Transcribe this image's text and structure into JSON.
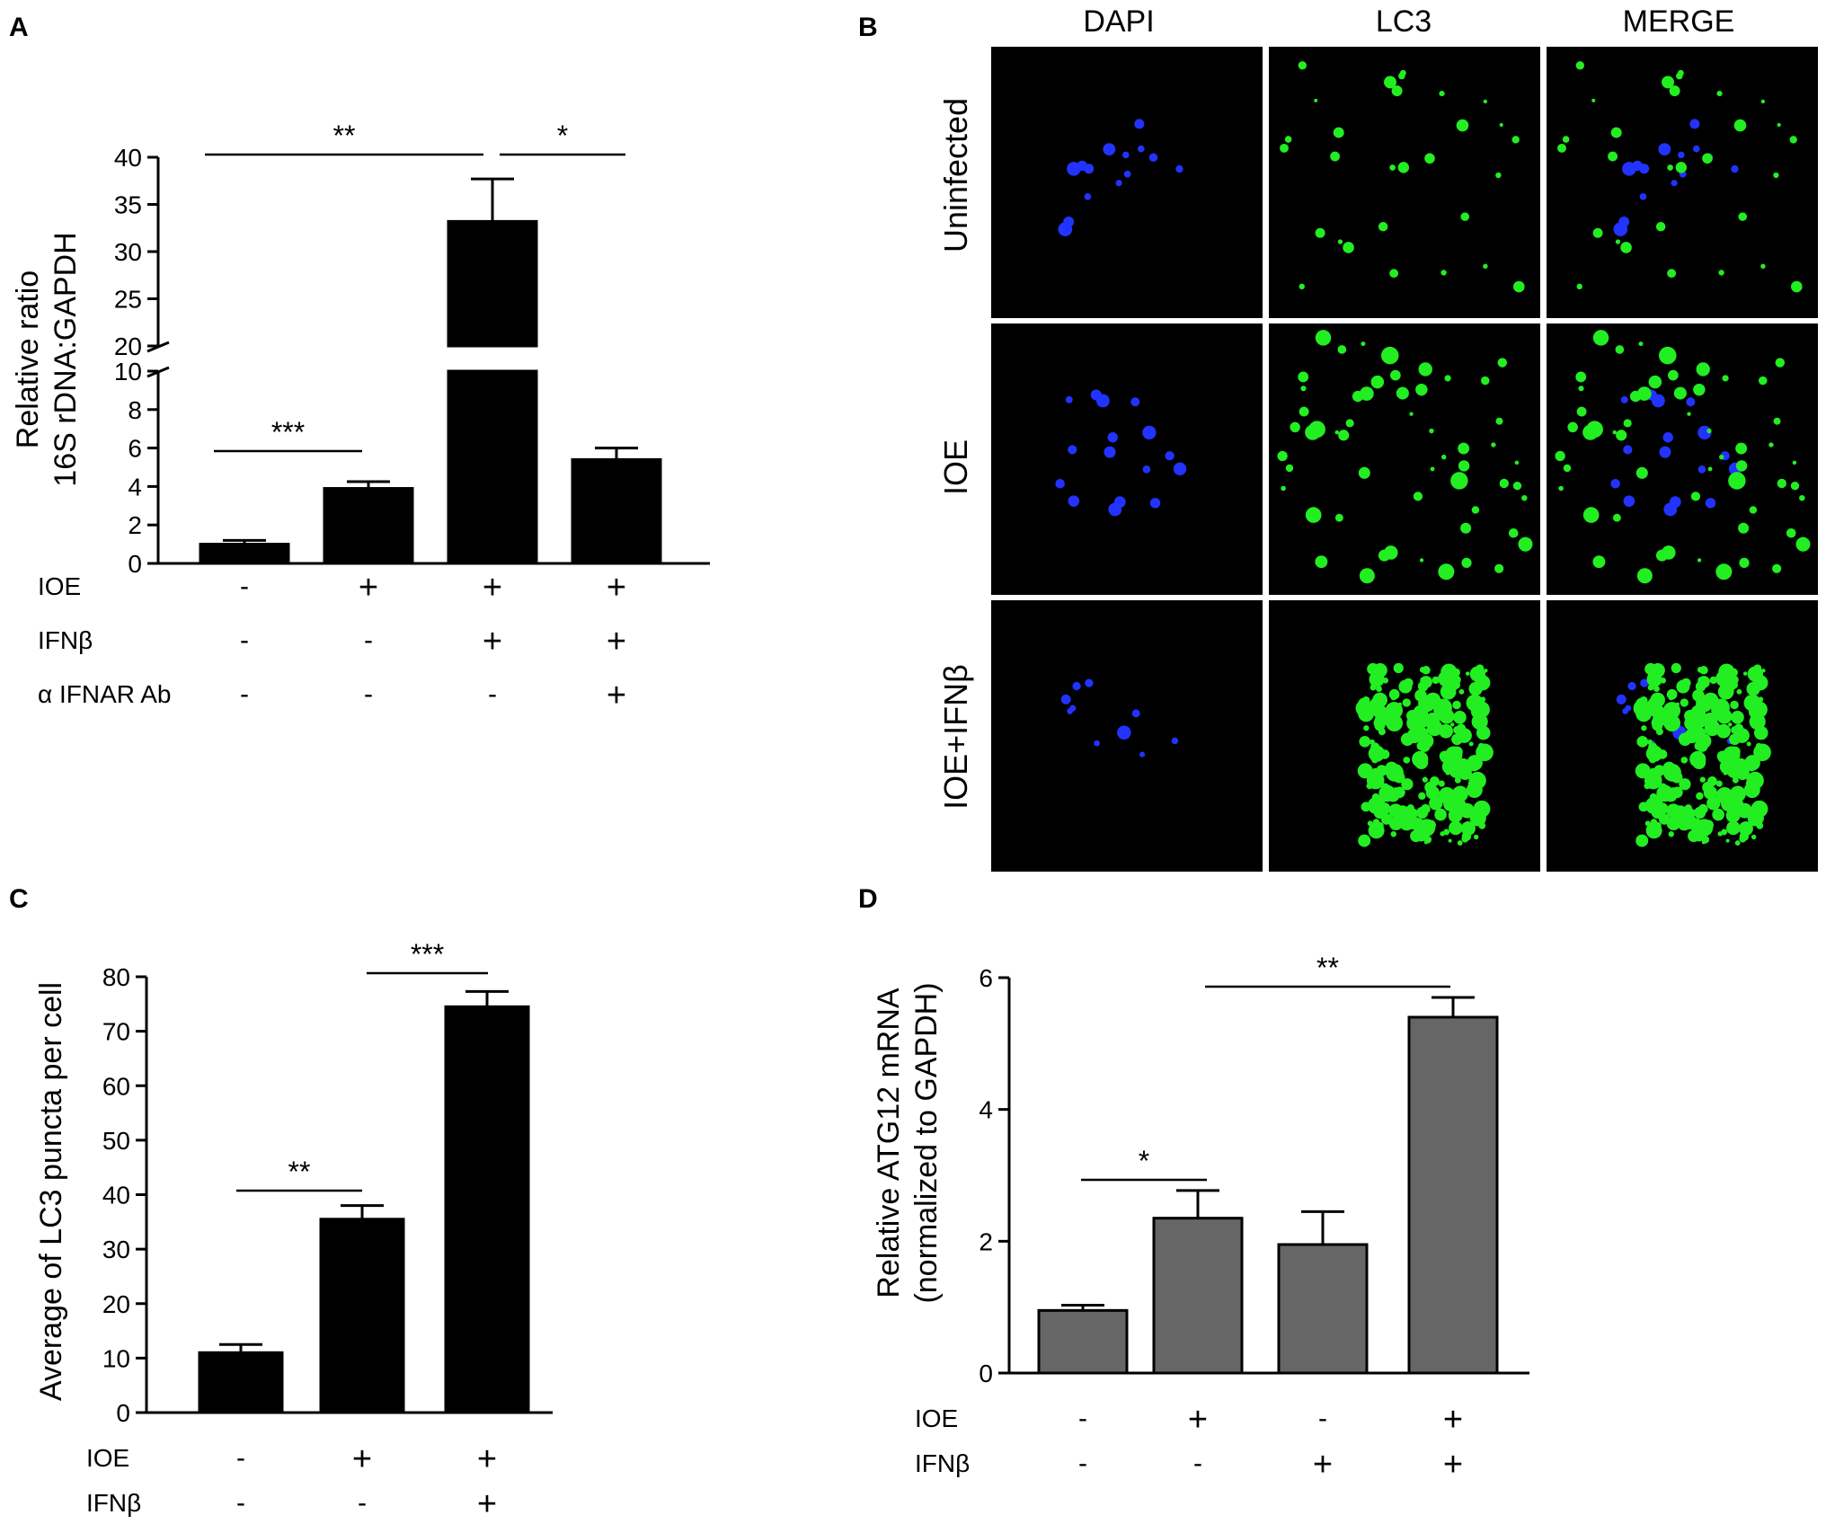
{
  "panels": {
    "A": {
      "letter": "A"
    },
    "B": {
      "letter": "B"
    },
    "C": {
      "letter": "C"
    },
    "D": {
      "letter": "D"
    }
  },
  "microscopy": {
    "columns": [
      "DAPI",
      "LC3",
      "MERGE"
    ],
    "rows": [
      "Uninfected",
      "IOE",
      "IOE+IFNβ"
    ],
    "colors": {
      "background": "#000000",
      "dapi": "#2233ff",
      "lc3": "#22ee22"
    }
  },
  "chart_data": [
    {
      "panel": "A",
      "type": "bar",
      "ylabel": [
        "Relative ratio",
        "16S rDNA:GAPDH"
      ],
      "broken_axis": true,
      "ylim_lower": [
        0,
        10
      ],
      "ylim_upper": [
        20,
        40
      ],
      "yticks_lower": [
        0,
        2,
        4,
        6,
        8,
        10
      ],
      "yticks_upper": [
        20,
        25,
        30,
        35,
        40
      ],
      "values": [
        1.0,
        3.9,
        33.2,
        5.4
      ],
      "errors": [
        0.2,
        0.35,
        4.5,
        0.6
      ],
      "bar_color": "#000000",
      "conditions": [
        {
          "label": "IOE",
          "values": [
            "-",
            "+",
            "+",
            "+"
          ]
        },
        {
          "label": "IFNβ",
          "values": [
            "-",
            "-",
            "+",
            "+"
          ]
        },
        {
          "label": "α IFNAR Ab",
          "values": [
            "-",
            "-",
            "-",
            "+"
          ]
        }
      ],
      "significance": [
        {
          "label": "**",
          "from": 0,
          "to": 2
        },
        {
          "label": "*",
          "from": 2,
          "to": 3
        },
        {
          "label": "***",
          "from": 0,
          "to": 1
        }
      ]
    },
    {
      "panel": "C",
      "type": "bar",
      "ylabel": [
        "Average of LC3 puncta per cell"
      ],
      "ylim": [
        0,
        80
      ],
      "yticks": [
        0,
        10,
        20,
        30,
        40,
        50,
        60,
        70,
        80
      ],
      "values": [
        11,
        35.5,
        74.5
      ],
      "errors": [
        1.5,
        2.5,
        2.8
      ],
      "bar_color": "#000000",
      "conditions": [
        {
          "label": "IOE",
          "values": [
            "-",
            "+",
            "+"
          ]
        },
        {
          "label": "IFNβ",
          "values": [
            "-",
            "-",
            "+"
          ]
        }
      ],
      "significance": [
        {
          "label": "**",
          "from": 0,
          "to": 1
        },
        {
          "label": "***",
          "from": 1,
          "to": 2
        }
      ]
    },
    {
      "panel": "D",
      "type": "bar",
      "ylabel": [
        "Relative ATG12 mRNA",
        "(normalized to GAPDH)"
      ],
      "ylim": [
        0,
        6
      ],
      "yticks": [
        0,
        2,
        4,
        6
      ],
      "values": [
        0.95,
        2.35,
        1.95,
        5.4
      ],
      "errors": [
        0.08,
        0.42,
        0.5,
        0.3
      ],
      "bar_color": "#666666",
      "conditions": [
        {
          "label": "IOE",
          "values": [
            "-",
            "+",
            "-",
            "+"
          ]
        },
        {
          "label": "IFNβ",
          "values": [
            "-",
            "-",
            "+",
            "+"
          ]
        }
      ],
      "significance": [
        {
          "label": "*",
          "from": 0,
          "to": 1
        },
        {
          "label": "**",
          "from": 1,
          "to": 3
        }
      ]
    }
  ]
}
